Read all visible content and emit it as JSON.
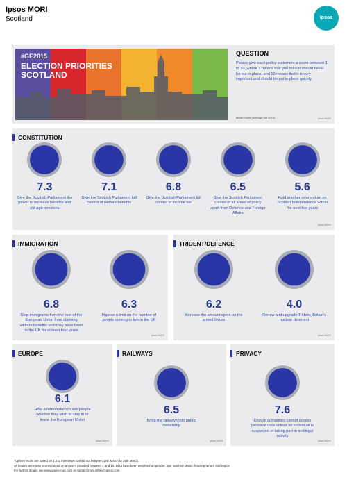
{
  "header": {
    "brand": "Ipsos MORI",
    "region": "Scotland",
    "logo": "Ipsos"
  },
  "banner": {
    "tag": "#GE2015",
    "title_lines": [
      "ELECTION PRIORITIES",
      "SCOTLAND"
    ]
  },
  "question": {
    "title": "QUESTION",
    "text": "Please give each policy statement a score between 1 to 10, where 1 means that you think it should never be put in place, and 10 means that it is very important and should be put in place quickly.",
    "note": "Mean Score (average out of 10)",
    "source": "Ipsos MORI"
  },
  "sections": [
    {
      "title": "CONSTITUTION",
      "source": "Ipsos MORI",
      "items": [
        {
          "score": "7.3",
          "label": "Give the Scottish Parliament the power to increase benefits and old age pensions"
        },
        {
          "score": "7.1",
          "label": "Give the Scottish Parliament full control of welfare benefits"
        },
        {
          "score": "6.8",
          "label": "Give the Scottish Parliament full control of income tax"
        },
        {
          "score": "6.5",
          "label": "Give the Scottish Parliament control of all areas of policy apart from Defence and Foreign Affairs"
        },
        {
          "score": "5.6",
          "label": "Hold another referendum on Scottish Independence within the next five years"
        }
      ]
    },
    {
      "title": "IMMIGRATION",
      "source": "Ipsos MORI",
      "items": [
        {
          "score": "6.8",
          "label": "Stop immigrants from the rest of the European Union from claiming welfare benefits until they have been in the UK for at least four years"
        },
        {
          "score": "6.3",
          "label": "Impose a limit on the number of people coming to live in the UK"
        }
      ]
    },
    {
      "title": "TRIDENT/DEFENCE",
      "source": "Ipsos MORI",
      "items": [
        {
          "score": "6.2",
          "label": "Increase the amount spent on the armed forces"
        },
        {
          "score": "4.0",
          "label": "Renew and upgrade Trident, Britain's nuclear deterrent"
        }
      ]
    },
    {
      "title": "EUROPE",
      "source": "Ipsos MORI",
      "items": [
        {
          "score": "6.1",
          "label": "Hold a referendum to ask people whether they wish to stay in or leave the European Union"
        }
      ]
    },
    {
      "title": "RAILWAYS",
      "source": "Ipsos MORI",
      "items": [
        {
          "score": "6.5",
          "label": "Bring the railways into public ownership"
        }
      ]
    },
    {
      "title": "PRIVACY",
      "source": "Ipsos MORI",
      "items": [
        {
          "score": "7.6",
          "label": "Ensure authorities cannot access personal data unless an individual is suspected of taking part in an illegal activity"
        }
      ]
    }
  ],
  "footer": [
    "Topline results are based on 1,042 interviews carried out between 19th March to 25th March.",
    "All figures are mean scores based on answers provided between 1 and 10. Data have been weighted on gender, age, working status, housing tenure and region",
    "For further details see www.ipsos-mori.com or contact mark.diffley@ipsos.com"
  ]
}
